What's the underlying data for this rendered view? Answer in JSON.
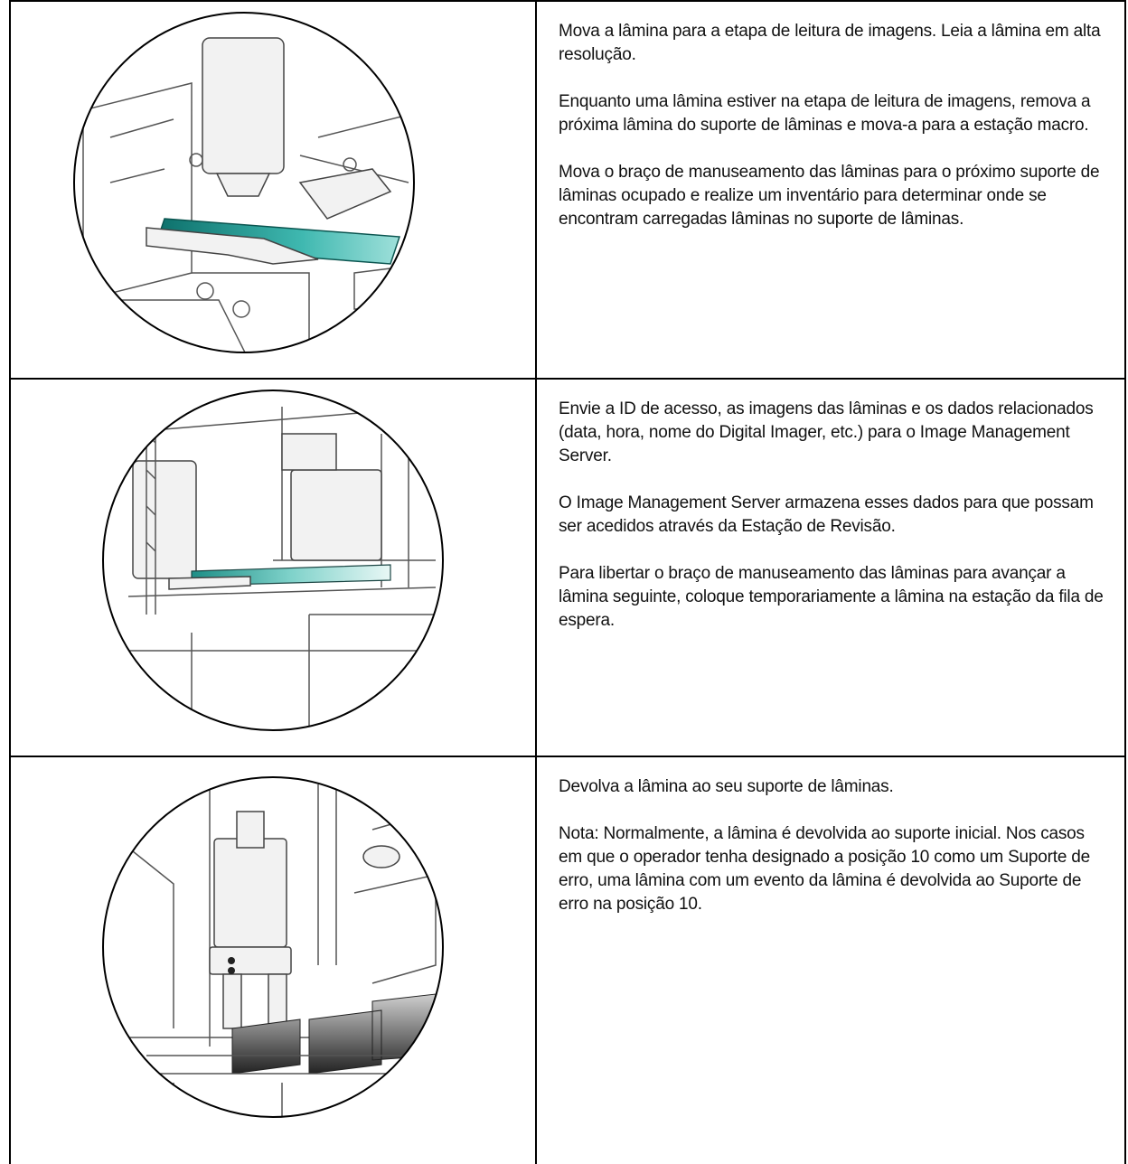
{
  "table": {
    "rows": [
      {
        "paragraphs": [
          "Mova a lâmina para a etapa de leitura de imagens. Leia a lâmina em alta resolução.",
          "Enquanto uma lâmina estiver na etapa de leitura de imagens, remova a próxima lâmina do suporte de lâminas e mova-a para a estação macro.",
          "Mova o braço de manuseamento das lâminas para o próximo suporte de lâminas ocupado e realize um inventário para determinar onde se encontram carregadas lâminas no suporte de lâminas."
        ]
      },
      {
        "paragraphs": [
          "Envie a ID de acesso, as imagens das lâminas e os dados relacionados (data, hora, nome do Digital Imager, etc.) para o Image Management Server.",
          "O Image Management Server armazena esses dados para que possam ser acedidos através da Estação de Revisão.",
          "Para libertar o braço de manuseamento das lâminas para avançar a lâmina seguinte, coloque temporariamente a lâmina na estação da fila de espera."
        ]
      },
      {
        "paragraphs": [
          "Devolva a lâmina ao seu suporte de lâminas.",
          "Nota: Normalmente, a lâmina é devolvida ao suporte inicial. Nos casos em que o operador tenha designado a posição 10 como um Suporte de erro, uma lâmina com um evento da lâmina é devolvida ao Suporte de erro na posição 10."
        ]
      }
    ]
  }
}
